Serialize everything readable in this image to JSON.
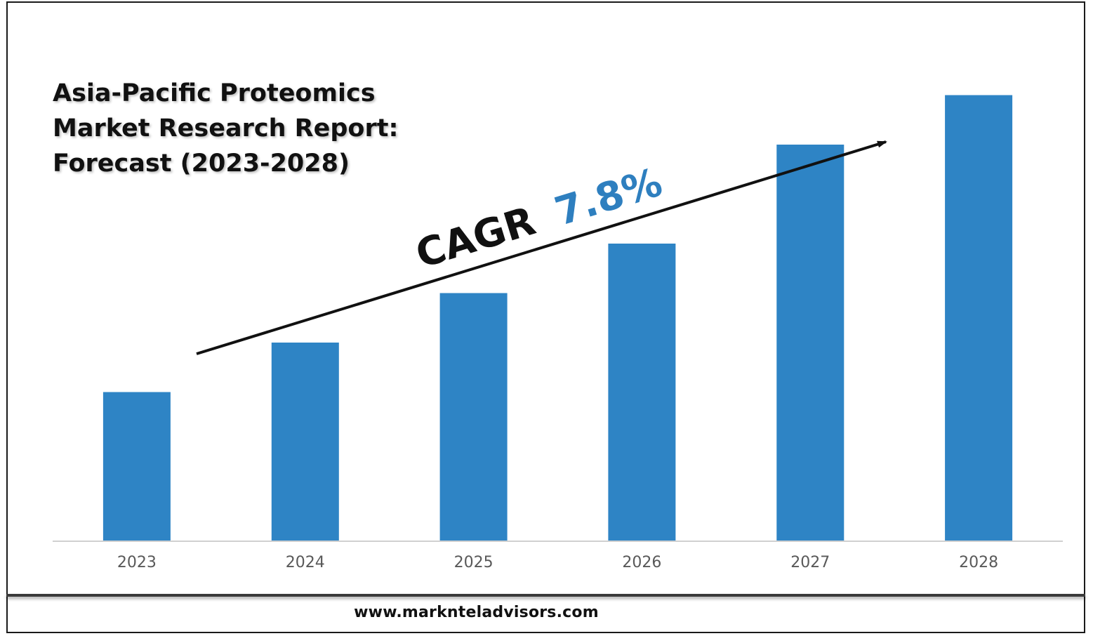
{
  "title_lines": [
    "Asia-Pacific Proteomics",
    "Market Research Report:",
    "Forecast (2023-2028)"
  ],
  "annotation": {
    "prefix": "CAGR",
    "value": "7.8%",
    "value_color": "#2E7FBF"
  },
  "footer": {
    "url": "www.marknteladvisors.com"
  },
  "colors": {
    "bar": "#2E84C5",
    "text": "#111111",
    "tick": "#595959",
    "arrow": "#111111"
  },
  "chart_data": {
    "type": "bar",
    "title": "Asia-Pacific Proteomics Market Research Report: Forecast (2023-2028)",
    "categories": [
      "2023",
      "2024",
      "2025",
      "2026",
      "2027",
      "2028"
    ],
    "values": [
      3,
      4,
      5,
      6,
      8,
      9
    ],
    "ylim": [
      0,
      10
    ],
    "y_axis_labels_shown": false,
    "grid": false,
    "legend": "none"
  }
}
